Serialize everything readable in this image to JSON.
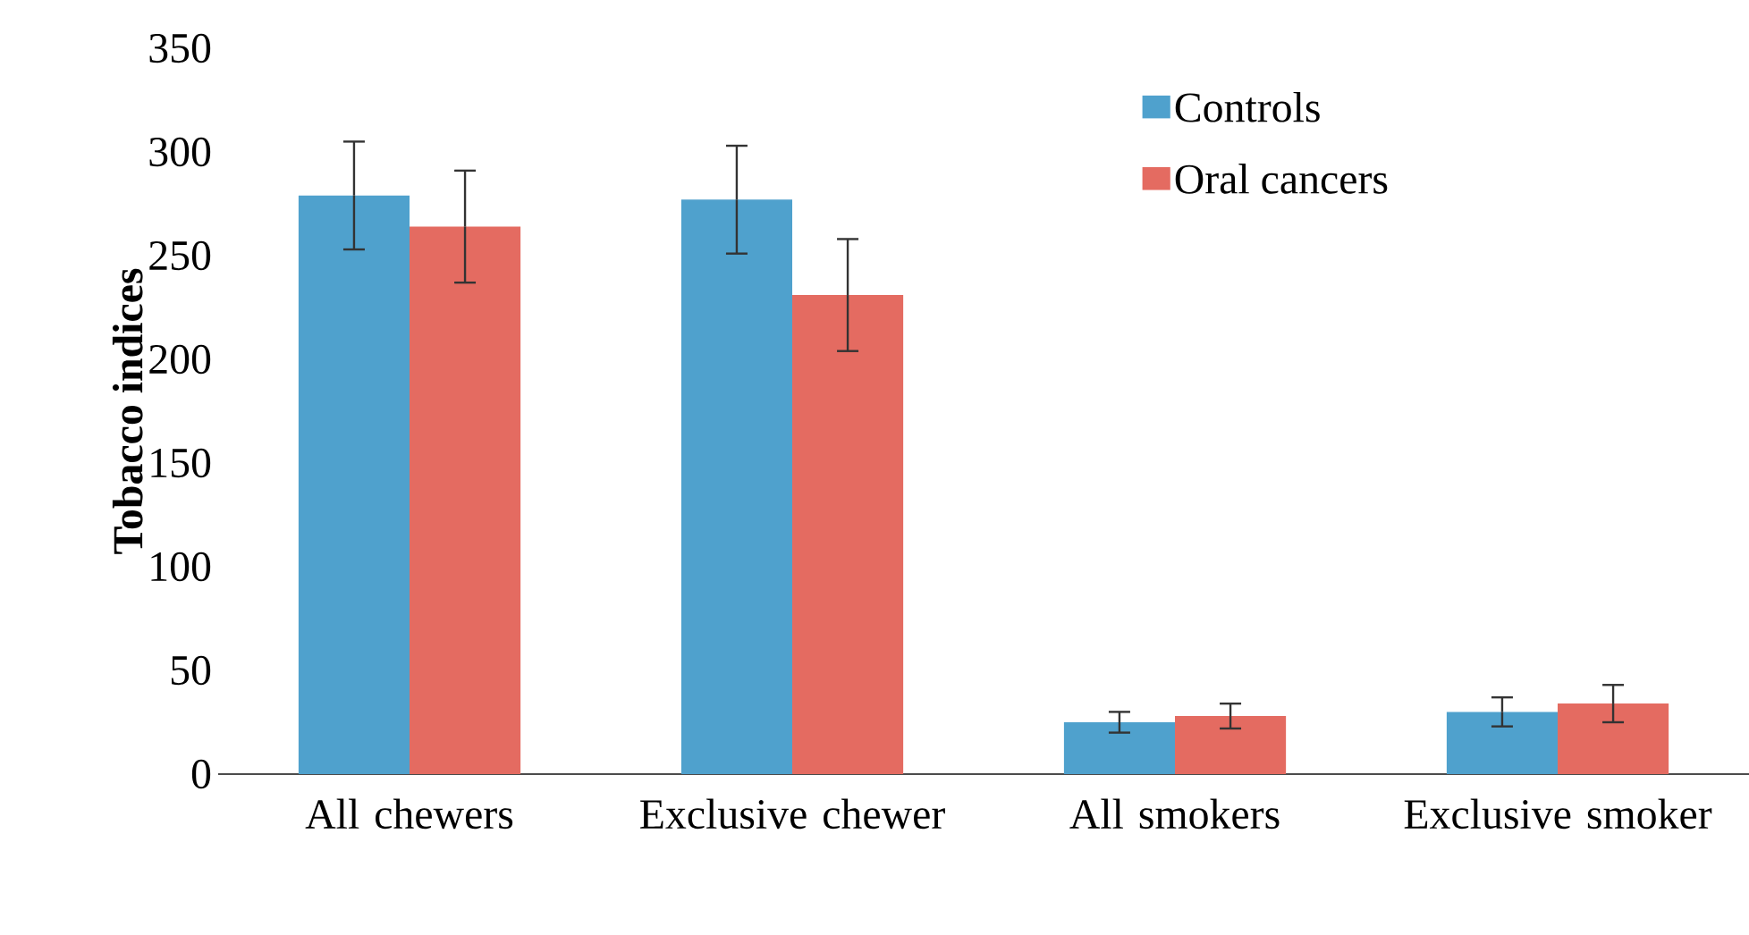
{
  "chart_data": {
    "type": "bar",
    "ylabel": "Tobacco indices",
    "categories": [
      "All chewers",
      "Exclusive chewer",
      "All smokers",
      "Exclusive smoker"
    ],
    "series": [
      {
        "name": "Controls",
        "color": "#4fa1cd",
        "values": [
          279,
          277,
          25,
          30
        ],
        "errors": [
          26,
          26,
          5,
          7
        ]
      },
      {
        "name": "Oral cancers",
        "color": "#e46b61",
        "values": [
          264,
          231,
          28,
          34
        ],
        "errors": [
          27,
          27,
          6,
          9
        ]
      }
    ],
    "ylim": [
      0,
      350
    ],
    "yticks": [
      0,
      50,
      100,
      150,
      200,
      250,
      300,
      350
    ],
    "legend": "top right"
  }
}
